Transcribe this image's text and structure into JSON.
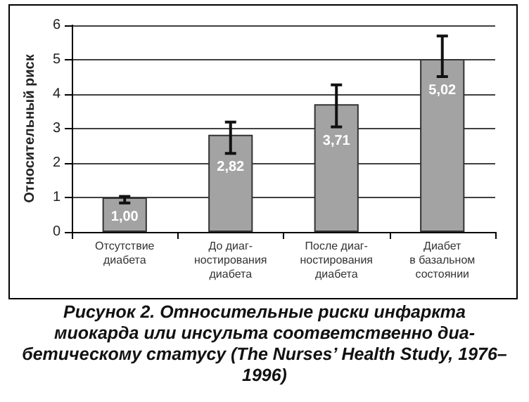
{
  "chart_data": {
    "type": "bar",
    "ylabel": "Относительный риск",
    "categories": [
      "Отсутствие\nдиабета",
      "До диаг-\nностирования\nдиабета",
      "После диаг-\nностирования\nдиабета",
      "Диабет\nв базальном\nсостоянии"
    ],
    "values": [
      1.0,
      2.82,
      3.71,
      5.02
    ],
    "value_labels": [
      "1,00",
      "2,82",
      "3,71",
      "5,02"
    ],
    "errors": [
      [
        0.84,
        1.03
      ],
      [
        2.28,
        3.19
      ],
      [
        3.05,
        4.27
      ],
      [
        4.51,
        5.69
      ]
    ],
    "color": "#a3a3a3",
    "ylim": [
      0,
      6
    ],
    "yticks": [
      0,
      1,
      2,
      3,
      4,
      5,
      6
    ],
    "grid": "y",
    "annotations": [
      "Рисунок 2. Относительные риски инфаркта миокарда или инсульта соответственно диа-бетическому статусу (The Nurses’ Health Study, 1976–1996)"
    ]
  }
}
